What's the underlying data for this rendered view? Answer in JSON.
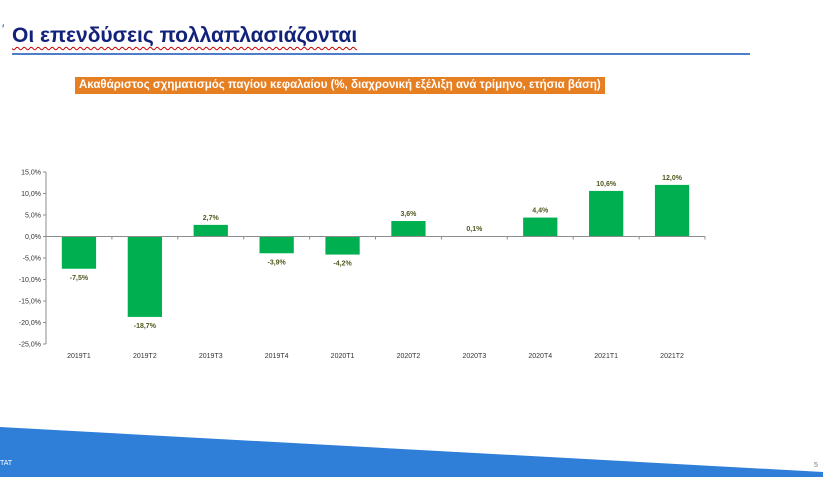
{
  "slide": {
    "mark": "′",
    "title": "Οι επενδύσεις πολλαπλασιάζονται",
    "footer_text": "TAT",
    "page_number": "5"
  },
  "chart_data": {
    "type": "bar",
    "title": "Ακαθάριστος σχηματισμός παγίου κεφαλαίου (%, διαχρονική εξέλιξη ανά τρίμηνο, ετήσια βάση)",
    "categories": [
      "2019T1",
      "2019T2",
      "2019T3",
      "2019T4",
      "2020T1",
      "2020T2",
      "2020T3",
      "2020T4",
      "2021T1",
      "2021T2"
    ],
    "values": [
      -7.5,
      -18.7,
      2.7,
      -3.9,
      -4.2,
      3.6,
      0.1,
      4.4,
      10.6,
      12.0
    ],
    "value_labels": [
      "-7,5%",
      "-18,7%",
      "2,7%",
      "-3,9%",
      "-4,2%",
      "3,6%",
      "0,1%",
      "4,4%",
      "10,6%",
      "12,0%"
    ],
    "y_ticks": [
      15,
      10,
      5,
      0,
      -5,
      -10,
      -15,
      -20,
      -25
    ],
    "y_tick_labels": [
      "15,0%",
      "10,0%",
      "5,0%",
      "0,0%",
      "-5,0%",
      "-10,0%",
      "-15,0%",
      "-20,0%",
      "-25,0%"
    ],
    "ylim": [
      -25,
      15
    ],
    "xlabel": "",
    "ylabel": "",
    "grid": false,
    "bar_color": "#00b050",
    "label_color": "#4d5a1e"
  }
}
